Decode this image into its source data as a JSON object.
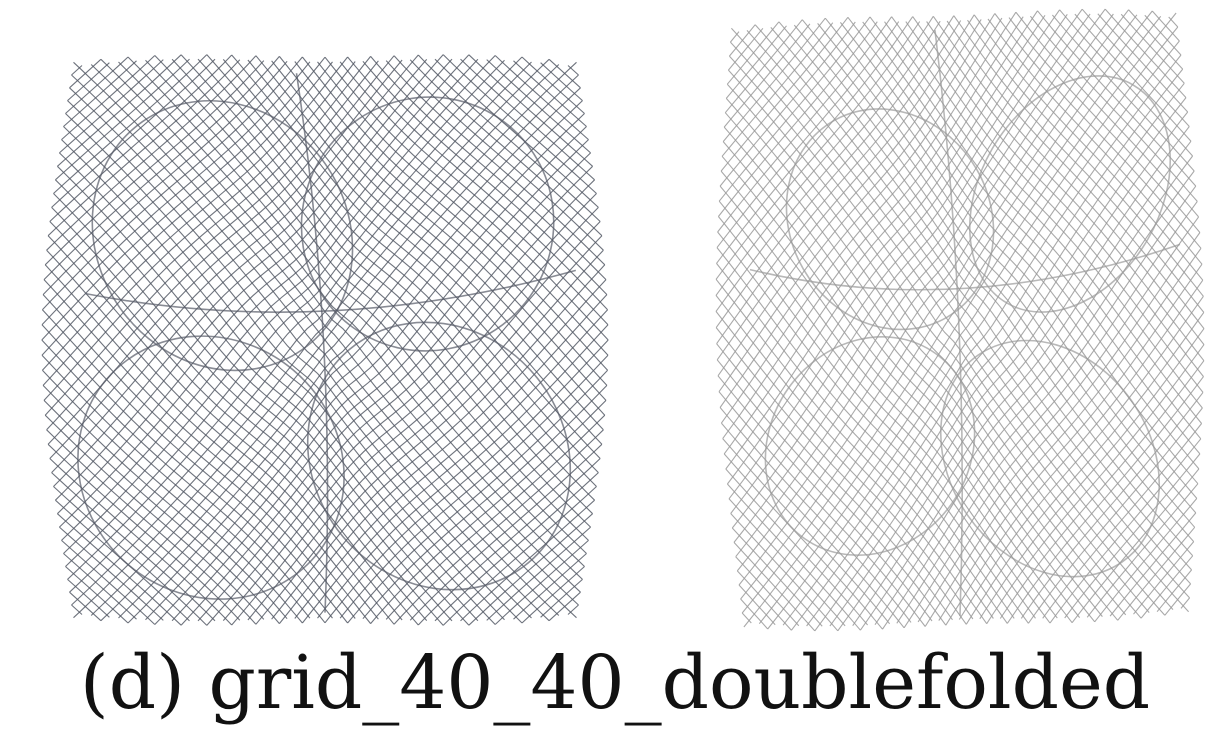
{
  "figure": {
    "caption": "(d) grid_40_40_doublefolded",
    "panels": [
      {
        "mesh_color": "#555a66"
      },
      {
        "mesh_color": "#9a9a9a"
      }
    ]
  }
}
